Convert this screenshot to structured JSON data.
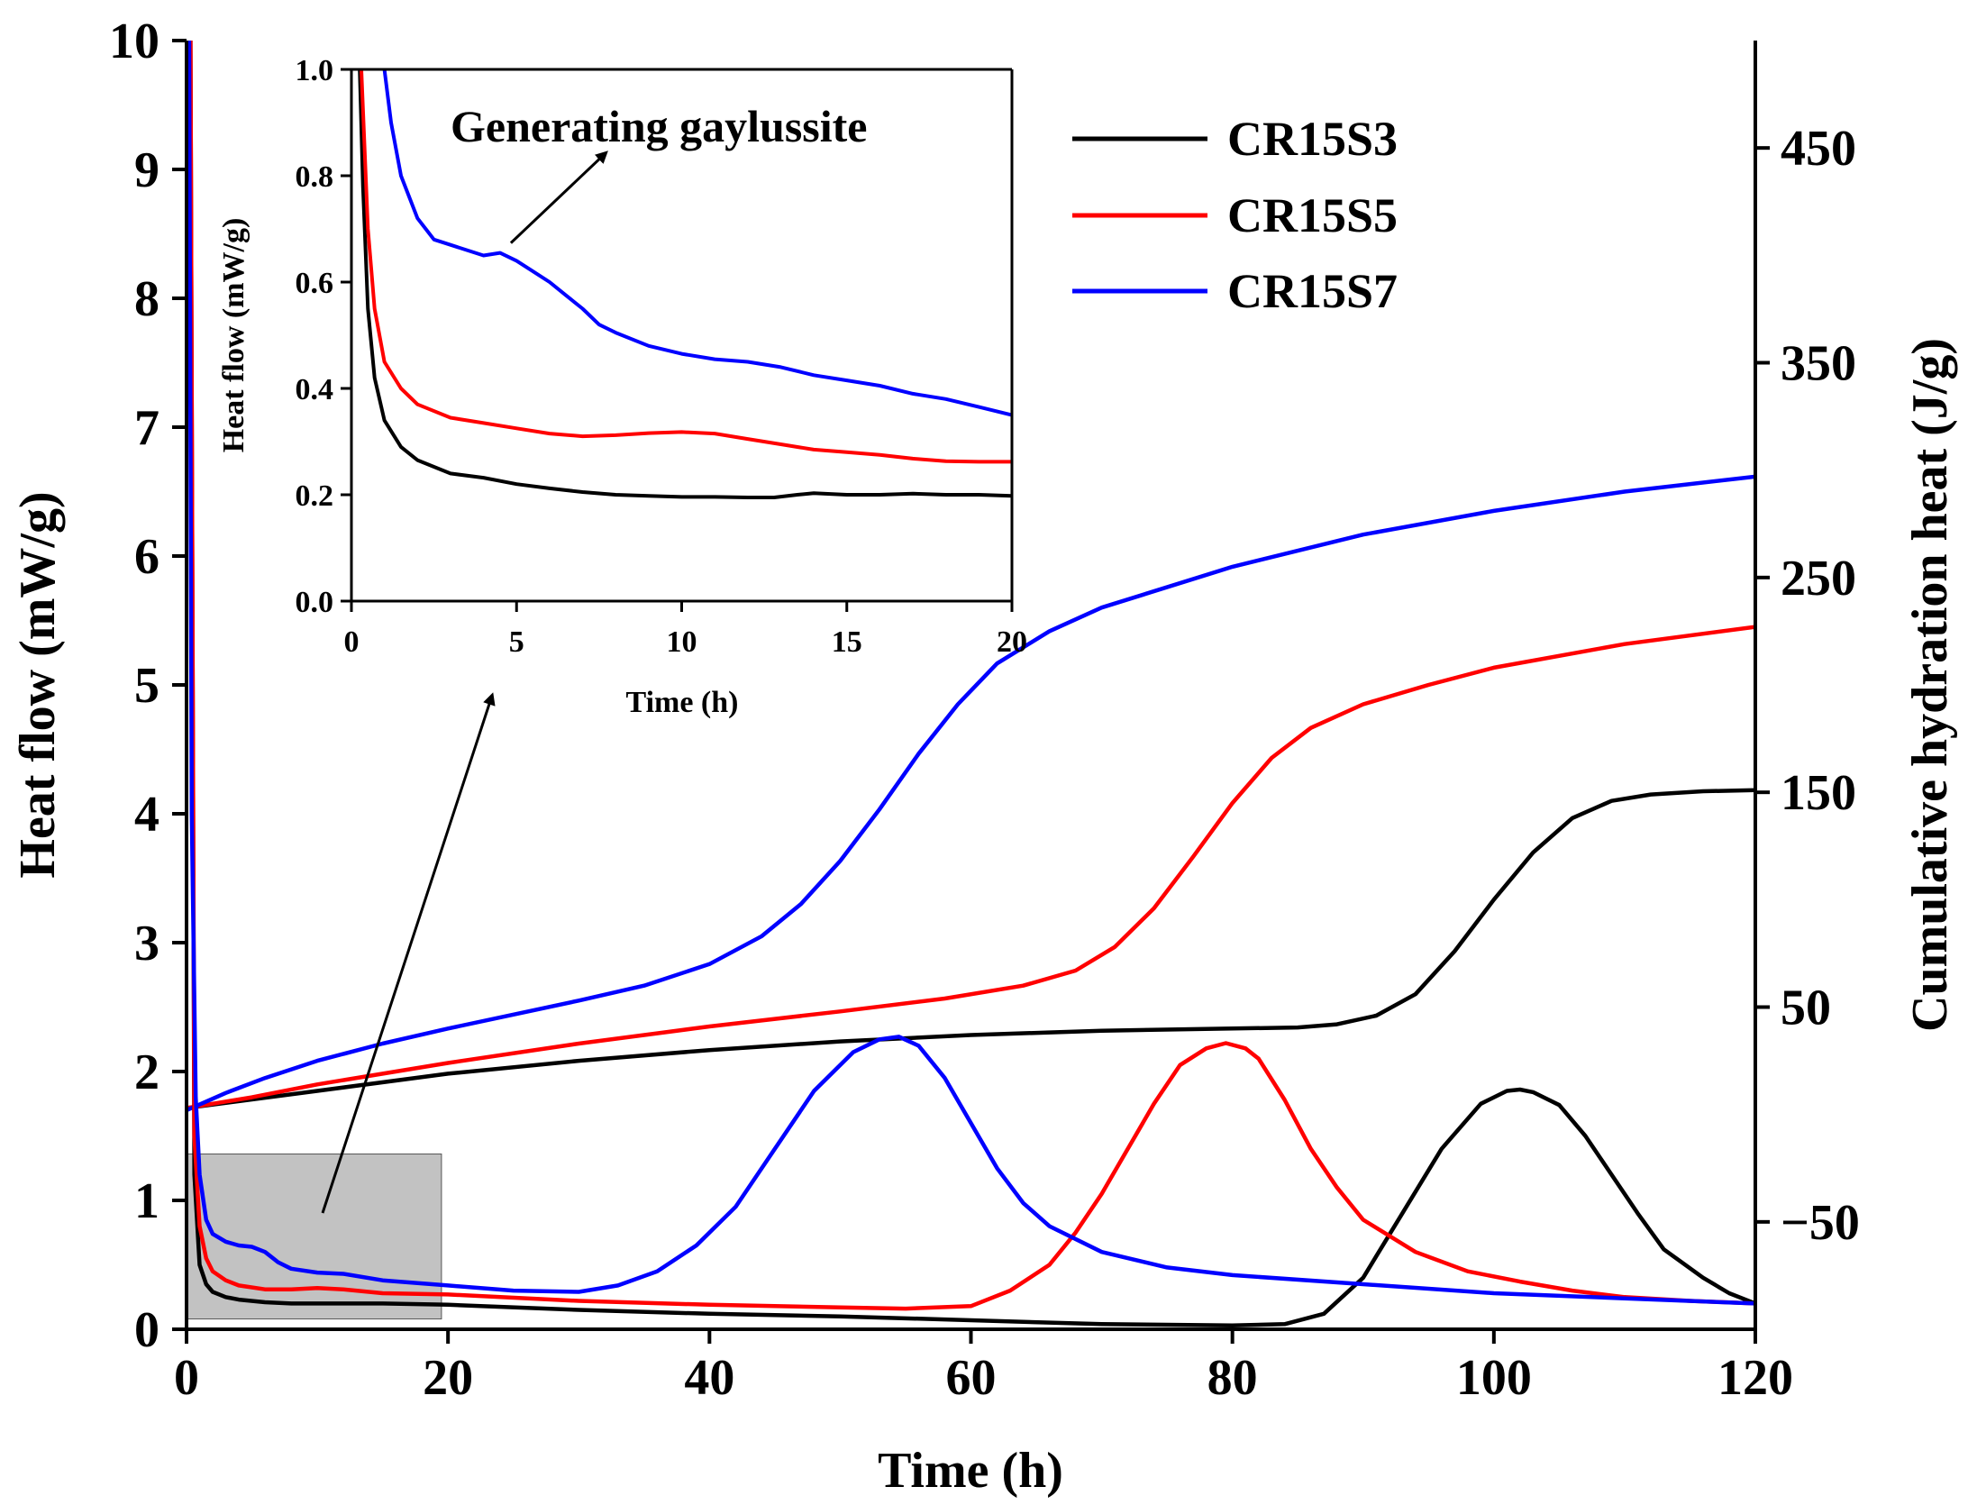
{
  "chart_data": [
    {
      "type": "line",
      "role": "main",
      "xlabel": "Time (h)",
      "ylabel": "Heat flow (mW/g)",
      "y2label": "Cumulative hydration heat (J/g)",
      "xlim": [
        0,
        120
      ],
      "ylim": [
        0,
        10
      ],
      "y2lim": [
        -100,
        500
      ],
      "xticks": [
        "0",
        "20",
        "40",
        "60",
        "80",
        "100",
        "120"
      ],
      "yticks": [
        "0",
        "1",
        "2",
        "3",
        "4",
        "5",
        "6",
        "7",
        "8",
        "9",
        "10"
      ],
      "y2ticks": [
        "−50",
        "50",
        "150",
        "250",
        "350",
        "450"
      ],
      "y2tick_values": [
        -50,
        50,
        150,
        250,
        350,
        450
      ],
      "legend": {
        "placement": "top-right",
        "entries": [
          "CR15S3",
          "CR15S5",
          "CR15S7"
        ]
      },
      "highlight_region": {
        "x": [
          0,
          19.5
        ],
        "y": [
          0.08,
          1.36
        ]
      },
      "heat_flow_series": [
        {
          "name": "CR15S3",
          "color": "#000000",
          "axis": "left",
          "x": [
            0.3,
            0.6,
            1,
            1.5,
            2,
            3,
            4,
            6,
            8,
            10,
            12,
            15,
            20,
            30,
            40,
            50,
            60,
            70,
            80,
            84,
            87,
            90,
            93,
            96,
            99,
            101,
            102,
            103,
            105,
            107,
            109,
            111,
            113,
            116,
            118,
            120
          ],
          "y": [
            10,
            1.2,
            0.5,
            0.35,
            0.29,
            0.25,
            0.23,
            0.21,
            0.2,
            0.2,
            0.2,
            0.2,
            0.19,
            0.15,
            0.12,
            0.1,
            0.07,
            0.04,
            0.03,
            0.04,
            0.12,
            0.4,
            0.9,
            1.4,
            1.75,
            1.85,
            1.86,
            1.84,
            1.74,
            1.5,
            1.2,
            0.9,
            0.62,
            0.4,
            0.28,
            0.2
          ]
        },
        {
          "name": "CR15S5",
          "color": "#ff0000",
          "axis": "left",
          "x": [
            0.3,
            0.6,
            1,
            1.5,
            2,
            3,
            4,
            6,
            8,
            10,
            12,
            15,
            20,
            30,
            40,
            50,
            55,
            60,
            63,
            66,
            68,
            70,
            72,
            74,
            76,
            78,
            79.5,
            81,
            82,
            84,
            86,
            88,
            90,
            94,
            98,
            102,
            106,
            110,
            115,
            120
          ],
          "y": [
            10,
            1.5,
            0.8,
            0.55,
            0.45,
            0.38,
            0.34,
            0.31,
            0.31,
            0.32,
            0.31,
            0.28,
            0.27,
            0.22,
            0.19,
            0.17,
            0.16,
            0.18,
            0.3,
            0.5,
            0.75,
            1.05,
            1.4,
            1.75,
            2.05,
            2.18,
            2.22,
            2.18,
            2.1,
            1.78,
            1.4,
            1.1,
            0.85,
            0.6,
            0.45,
            0.37,
            0.3,
            0.25,
            0.22,
            0.2
          ]
        },
        {
          "name": "CR15S7",
          "color": "#0000ff",
          "axis": "left",
          "x": [
            0.2,
            0.4,
            0.7,
            1,
            1.5,
            2,
            3,
            4,
            5,
            6,
            7,
            8,
            10,
            12,
            15,
            20,
            25,
            30,
            33,
            36,
            39,
            42,
            45,
            48,
            51,
            53,
            54.5,
            56,
            58,
            60,
            62,
            64,
            66,
            70,
            75,
            80,
            90,
            100,
            110,
            120
          ],
          "y": [
            10,
            4,
            1.8,
            1.2,
            0.85,
            0.74,
            0.68,
            0.65,
            0.64,
            0.6,
            0.52,
            0.47,
            0.44,
            0.43,
            0.38,
            0.34,
            0.3,
            0.29,
            0.34,
            0.45,
            0.65,
            0.95,
            1.4,
            1.85,
            2.15,
            2.25,
            2.27,
            2.2,
            1.95,
            1.6,
            1.25,
            0.98,
            0.8,
            0.6,
            0.48,
            0.42,
            0.35,
            0.28,
            0.24,
            0.2
          ]
        }
      ],
      "cumulative_heat_series": [
        {
          "name": "CR15S3",
          "color": "#000000",
          "axis": "right",
          "x": [
            0,
            5,
            10,
            20,
            30,
            40,
            50,
            60,
            70,
            80,
            85,
            88,
            91,
            94,
            97,
            100,
            103,
            106,
            109,
            112,
            116,
            120
          ],
          "y": [
            3,
            7,
            11,
            19,
            25,
            30,
            34,
            37,
            39,
            40,
            40.5,
            42,
            46,
            56,
            76,
            100,
            122,
            138,
            146,
            149,
            150.5,
            151
          ]
        },
        {
          "name": "CR15S5",
          "color": "#ff0000",
          "axis": "right",
          "x": [
            0,
            5,
            10,
            20,
            30,
            40,
            50,
            58,
            64,
            68,
            71,
            74,
            77,
            80,
            83,
            86,
            90,
            95,
            100,
            110,
            120
          ],
          "y": [
            3,
            8,
            14,
            24,
            33,
            41,
            48,
            54,
            60,
            67,
            78,
            96,
            120,
            145,
            166,
            180,
            191,
            200,
            208,
            219,
            227
          ]
        },
        {
          "name": "CR15S7",
          "color": "#0000ff",
          "axis": "right",
          "x": [
            0,
            3,
            6,
            10,
            15,
            20,
            30,
            35,
            40,
            44,
            47,
            50,
            53,
            56,
            59,
            62,
            66,
            70,
            80,
            90,
            100,
            110,
            120
          ],
          "y": [
            2,
            10,
            17,
            25,
            33,
            40,
            53,
            60,
            70,
            83,
            98,
            118,
            142,
            168,
            191,
            210,
            225,
            236,
            255,
            270,
            281,
            290,
            297
          ]
        }
      ]
    },
    {
      "type": "line",
      "role": "inset",
      "xlabel": "Time (h)",
      "ylabel": "Heat flow (mW/g)",
      "xlim": [
        0,
        20
      ],
      "ylim": [
        0,
        1
      ],
      "xticks": [
        "0",
        "5",
        "10",
        "15",
        "20"
      ],
      "yticks": [
        "0.0",
        "0.2",
        "0.4",
        "0.6",
        "0.8",
        "1.0"
      ],
      "annotation": {
        "text": "Generating gaylussite",
        "points_to": {
          "x": 4.5,
          "y": 0.66
        }
      },
      "series": [
        {
          "name": "CR15S3",
          "color": "#000000",
          "x": [
            0.25,
            0.35,
            0.5,
            0.7,
            1,
            1.5,
            2,
            3,
            4,
            5,
            6,
            7,
            8,
            9,
            10,
            11,
            12,
            12.8,
            13.5,
            14,
            15,
            16,
            17,
            18,
            19,
            20
          ],
          "y": [
            1.0,
            0.78,
            0.55,
            0.42,
            0.34,
            0.29,
            0.265,
            0.24,
            0.232,
            0.22,
            0.212,
            0.205,
            0.2,
            0.198,
            0.196,
            0.196,
            0.195,
            0.195,
            0.2,
            0.203,
            0.2,
            0.2,
            0.202,
            0.2,
            0.2,
            0.198
          ]
        },
        {
          "name": "CR15S5",
          "color": "#ff0000",
          "x": [
            0.3,
            0.5,
            0.7,
            1,
            1.5,
            2,
            3,
            4,
            5,
            6,
            7,
            8,
            9,
            10,
            11,
            12,
            13,
            14,
            15,
            16,
            17,
            18,
            19,
            20
          ],
          "y": [
            1.0,
            0.7,
            0.55,
            0.45,
            0.4,
            0.37,
            0.345,
            0.335,
            0.325,
            0.315,
            0.31,
            0.312,
            0.316,
            0.318,
            0.315,
            0.305,
            0.295,
            0.285,
            0.28,
            0.275,
            0.268,
            0.263,
            0.262,
            0.262
          ]
        },
        {
          "name": "CR15S7",
          "color": "#0000ff",
          "x": [
            1.0,
            1.2,
            1.5,
            2,
            2.5,
            3,
            3.5,
            4,
            4.5,
            5,
            5.5,
            6,
            6.5,
            7,
            7.5,
            8,
            9,
            10,
            11,
            12,
            13,
            14,
            15,
            16,
            17,
            18,
            19,
            20
          ],
          "y": [
            1.0,
            0.9,
            0.8,
            0.72,
            0.68,
            0.67,
            0.66,
            0.65,
            0.655,
            0.64,
            0.62,
            0.6,
            0.575,
            0.55,
            0.52,
            0.505,
            0.48,
            0.465,
            0.455,
            0.45,
            0.44,
            0.425,
            0.415,
            0.405,
            0.39,
            0.38,
            0.365,
            0.35
          ]
        }
      ]
    }
  ]
}
